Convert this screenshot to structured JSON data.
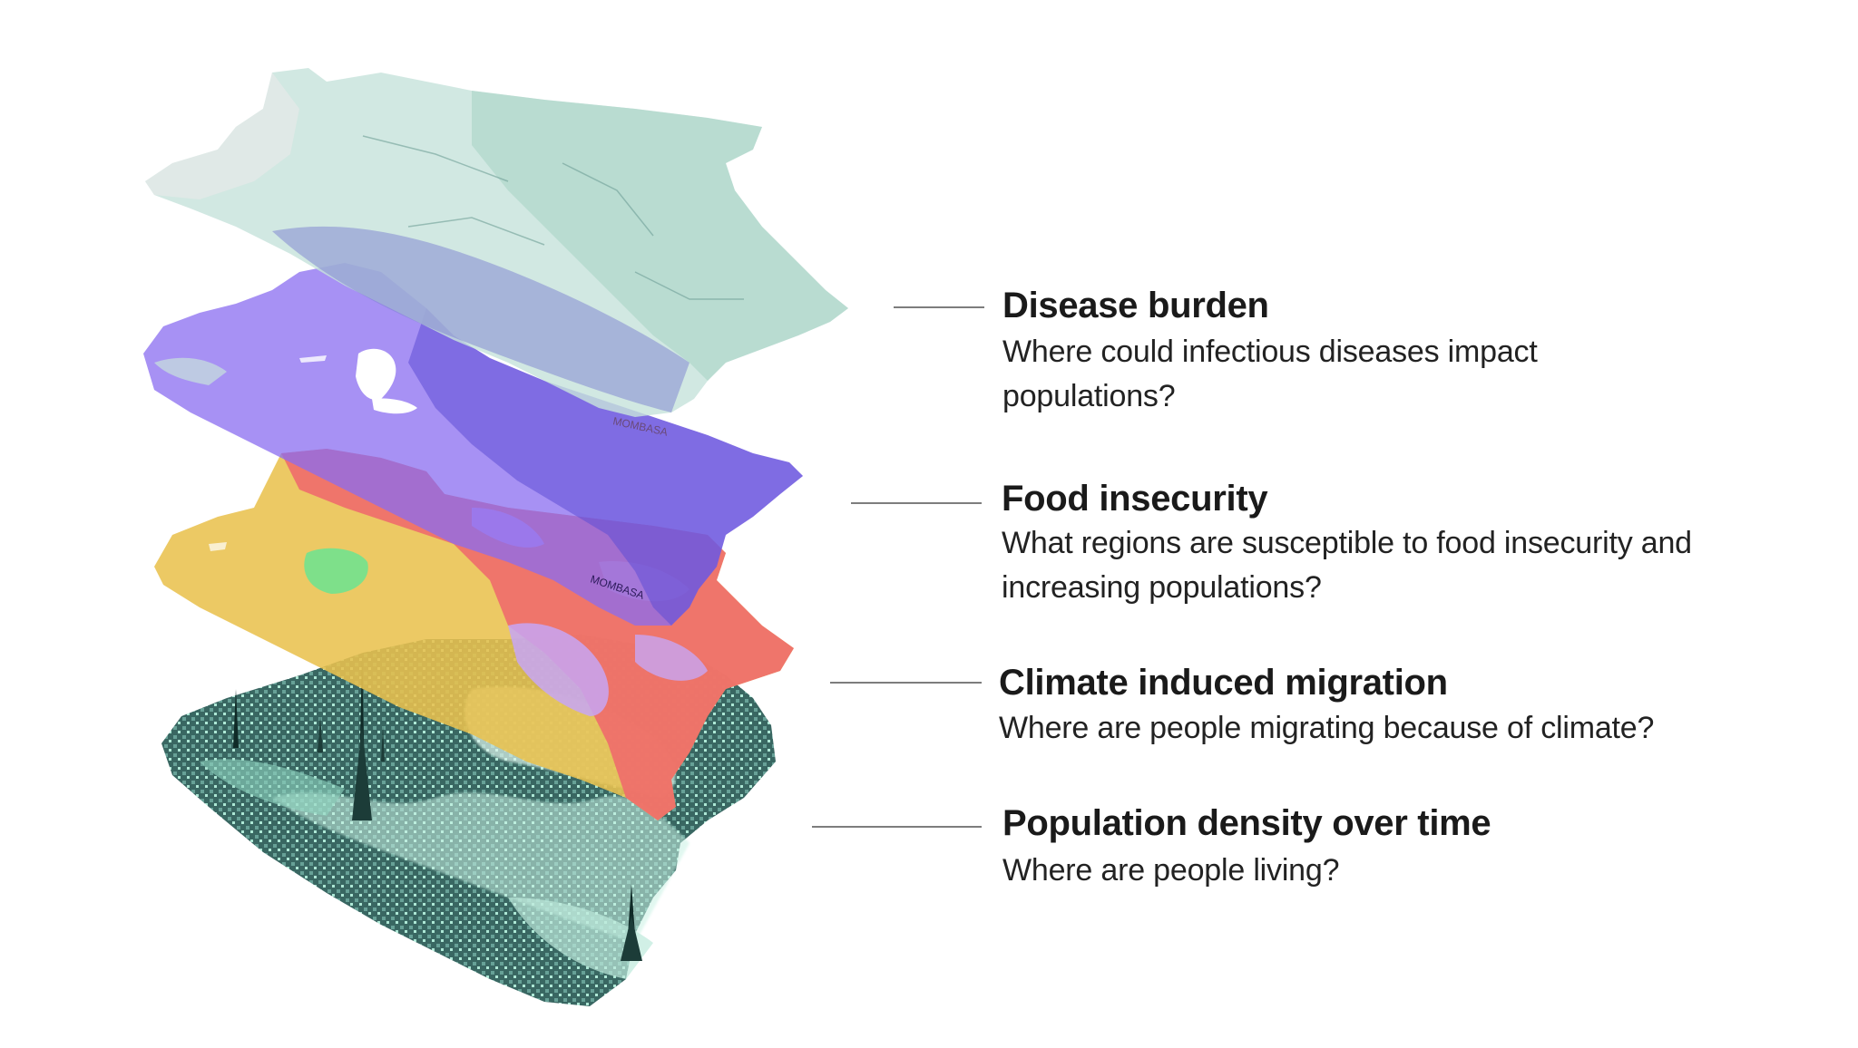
{
  "layers": [
    {
      "id": "disease",
      "title": "Disease burden",
      "question": "Where could infectious diseases impact populations?",
      "color": "#c7e3dc"
    },
    {
      "id": "food",
      "title": "Food insecurity",
      "question": "What regions are susceptible to food insecurity and increasing populations?",
      "color": "#8a6cf0"
    },
    {
      "id": "climate",
      "title": "Climate induced migration",
      "question": "Where are people migrating because of climate?",
      "color": "#ef6b6b"
    },
    {
      "id": "population",
      "title": "Population density over time",
      "question": "Where are people living?",
      "color": "#2f5f5a"
    }
  ],
  "map_labels": {
    "city_top": "MOMBASA",
    "city_mid": "MOMBASA"
  },
  "palette": {
    "climate_yellow": "#e9c24f",
    "climate_green": "#7ee08a",
    "population_light": "#c9f2e4",
    "leader_line": "#7d7d7d"
  }
}
